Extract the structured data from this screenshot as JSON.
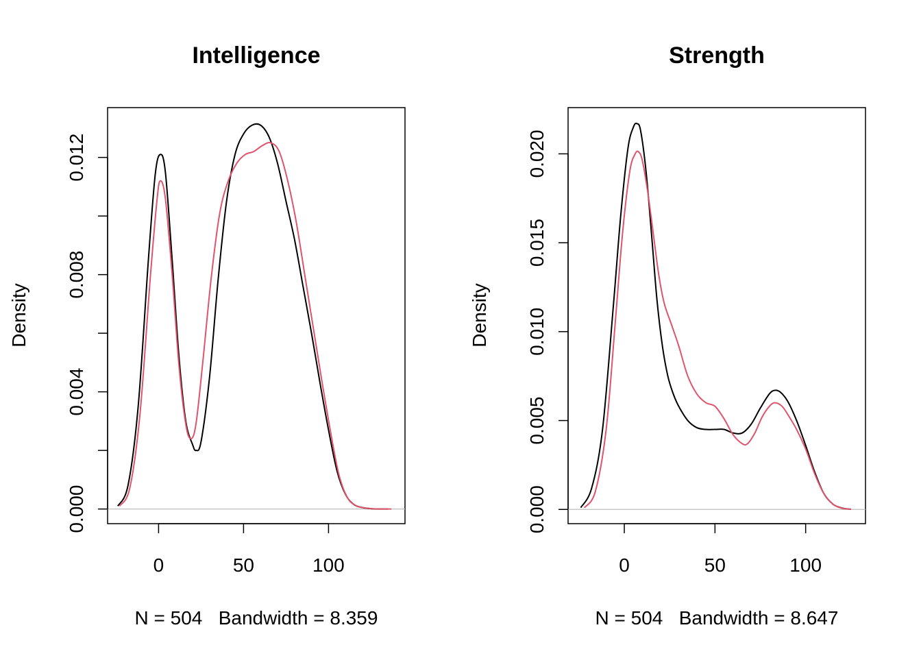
{
  "colors": {
    "original": "#000000",
    "resampled": "#DF536B",
    "baseline": "#BEBEBE"
  },
  "chart_data": [
    {
      "type": "line",
      "title": "Intelligence",
      "xlabel": "N = 504   Bandwidth = 8.359",
      "ylabel": "Density",
      "xlim": [
        -30,
        145
      ],
      "ylim": [
        -0.0005,
        0.0137
      ],
      "xticks": [
        0,
        50,
        100
      ],
      "xtick_labels": [
        "0",
        "50",
        "100"
      ],
      "yticks": [
        0,
        0.002,
        0.004,
        0.006,
        0.008,
        0.01,
        0.012
      ],
      "ytick_labels": [
        "0.000",
        "",
        "0.004",
        "",
        "0.008",
        "",
        "0.012"
      ],
      "grid": false,
      "series": [
        {
          "color": "#000000",
          "x": [
            -24,
            -18,
            -12,
            -6,
            -2,
            1,
            4,
            8,
            12,
            16,
            20,
            22,
            25,
            30,
            35,
            40,
            45,
            50,
            55,
            60,
            65,
            70,
            75,
            80,
            85,
            90,
            95,
            100,
            105,
            110,
            115,
            120,
            125,
            130,
            135
          ],
          "y": [
            0.0001,
            0.0008,
            0.0035,
            0.0085,
            0.0114,
            0.0121,
            0.0115,
            0.0085,
            0.0052,
            0.003,
            0.0022,
            0.002,
            0.0023,
            0.0045,
            0.0078,
            0.0105,
            0.0121,
            0.0128,
            0.0131,
            0.0131,
            0.0127,
            0.0118,
            0.0105,
            0.0092,
            0.0076,
            0.006,
            0.0043,
            0.0027,
            0.0013,
            0.0005,
            0.00015,
            5e-05,
            1e-05,
            0.0,
            0.0
          ]
        },
        {
          "color": "#DF536B",
          "x": [
            -23,
            -17,
            -11,
            -5,
            -1,
            1,
            4,
            8,
            12,
            16,
            19,
            22,
            26,
            31,
            36,
            41,
            46,
            51,
            56,
            61,
            66,
            71,
            76,
            81,
            86,
            91,
            96,
            101,
            106,
            111,
            116,
            121,
            126,
            131,
            137
          ],
          "y": [
            0.0001,
            0.0007,
            0.0032,
            0.0078,
            0.0105,
            0.0112,
            0.0106,
            0.008,
            0.0049,
            0.0029,
            0.0024,
            0.0029,
            0.005,
            0.0079,
            0.0101,
            0.0112,
            0.0118,
            0.0121,
            0.0122,
            0.0124,
            0.0125,
            0.0122,
            0.0112,
            0.0098,
            0.008,
            0.0062,
            0.0044,
            0.0027,
            0.0012,
            0.0004,
            0.00012,
            4e-05,
            1e-05,
            0.0,
            0.0
          ]
        }
      ]
    },
    {
      "type": "line",
      "title": "Strength",
      "xlabel": "N = 504   Bandwidth = 8.647",
      "ylabel": "Density",
      "xlim": [
        -31,
        133
      ],
      "ylim": [
        -0.0008,
        0.0226
      ],
      "xticks": [
        0,
        50,
        100
      ],
      "xtick_labels": [
        "0",
        "50",
        "100"
      ],
      "yticks": [
        0,
        0.005,
        0.01,
        0.015,
        0.02
      ],
      "ytick_labels": [
        "0.000",
        "0.005",
        "0.010",
        "0.015",
        "0.020"
      ],
      "grid": false,
      "series": [
        {
          "color": "#000000",
          "x": [
            -24,
            -18,
            -12,
            -6,
            -2,
            2,
            5,
            7,
            9,
            12,
            15,
            18,
            21,
            24,
            27,
            30,
            35,
            40,
            45,
            50,
            55,
            60,
            65,
            70,
            75,
            80,
            83,
            86,
            90,
            95,
            100,
            105,
            110,
            115,
            120,
            125
          ],
          "y": [
            0.0001,
            0.0012,
            0.0045,
            0.0115,
            0.0165,
            0.0203,
            0.0215,
            0.0217,
            0.0213,
            0.019,
            0.0155,
            0.0118,
            0.0092,
            0.0075,
            0.0065,
            0.0058,
            0.005,
            0.0046,
            0.0045,
            0.0045,
            0.0045,
            0.0043,
            0.0043,
            0.0048,
            0.0057,
            0.0065,
            0.0067,
            0.0066,
            0.0061,
            0.005,
            0.0036,
            0.0021,
            0.0009,
            0.0003,
            8e-05,
            1e-05
          ]
        },
        {
          "color": "#DF536B",
          "x": [
            -22,
            -16,
            -10,
            -5,
            -1,
            3,
            6,
            8,
            10,
            13,
            16,
            19,
            22,
            26,
            30,
            35,
            40,
            45,
            50,
            55,
            60,
            65,
            68,
            72,
            76,
            80,
            83,
            87,
            91,
            95,
            100,
            105,
            110,
            115,
            120,
            125
          ],
          "y": [
            0.0001,
            0.001,
            0.0045,
            0.0105,
            0.0155,
            0.019,
            0.02,
            0.0201,
            0.0196,
            0.0178,
            0.0155,
            0.0132,
            0.0116,
            0.0104,
            0.0092,
            0.0075,
            0.0065,
            0.006,
            0.0058,
            0.0051,
            0.0042,
            0.0037,
            0.0037,
            0.0043,
            0.0052,
            0.0058,
            0.006,
            0.0058,
            0.0052,
            0.0045,
            0.0034,
            0.002,
            0.0009,
            0.0003,
            7e-05,
            1e-05
          ]
        }
      ]
    }
  ]
}
